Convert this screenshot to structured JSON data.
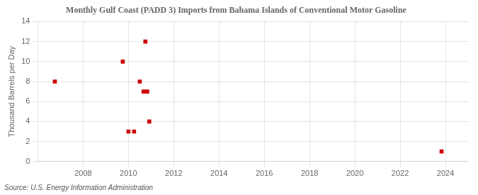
{
  "chart_data": {
    "type": "scatter",
    "title": "Monthly Gulf Coast (PADD 3) Imports from Bahama Islands of Conventional Motor Gasoline",
    "ylabel": "Thousand Barrels per Day",
    "annotations": [
      "Source: U.S. Energy Information Administration"
    ],
    "x": [
      2006.75,
      2009.75,
      2010.0,
      2010.25,
      2010.75,
      2010.5,
      2010.67,
      2010.83,
      2010.92,
      2023.83
    ],
    "values": [
      8,
      10,
      3,
      3,
      12,
      8,
      7,
      7,
      4,
      1
    ],
    "color": "#cc0000",
    "marker": "square",
    "xlim": [
      2006,
      2025
    ],
    "xticks": [
      2008,
      2010,
      2012,
      2014,
      2016,
      2018,
      2020,
      2022,
      2024
    ],
    "ylim": [
      0,
      14
    ],
    "yticks": [
      0,
      2,
      4,
      6,
      8,
      10,
      12,
      14
    ],
    "grid": true
  }
}
